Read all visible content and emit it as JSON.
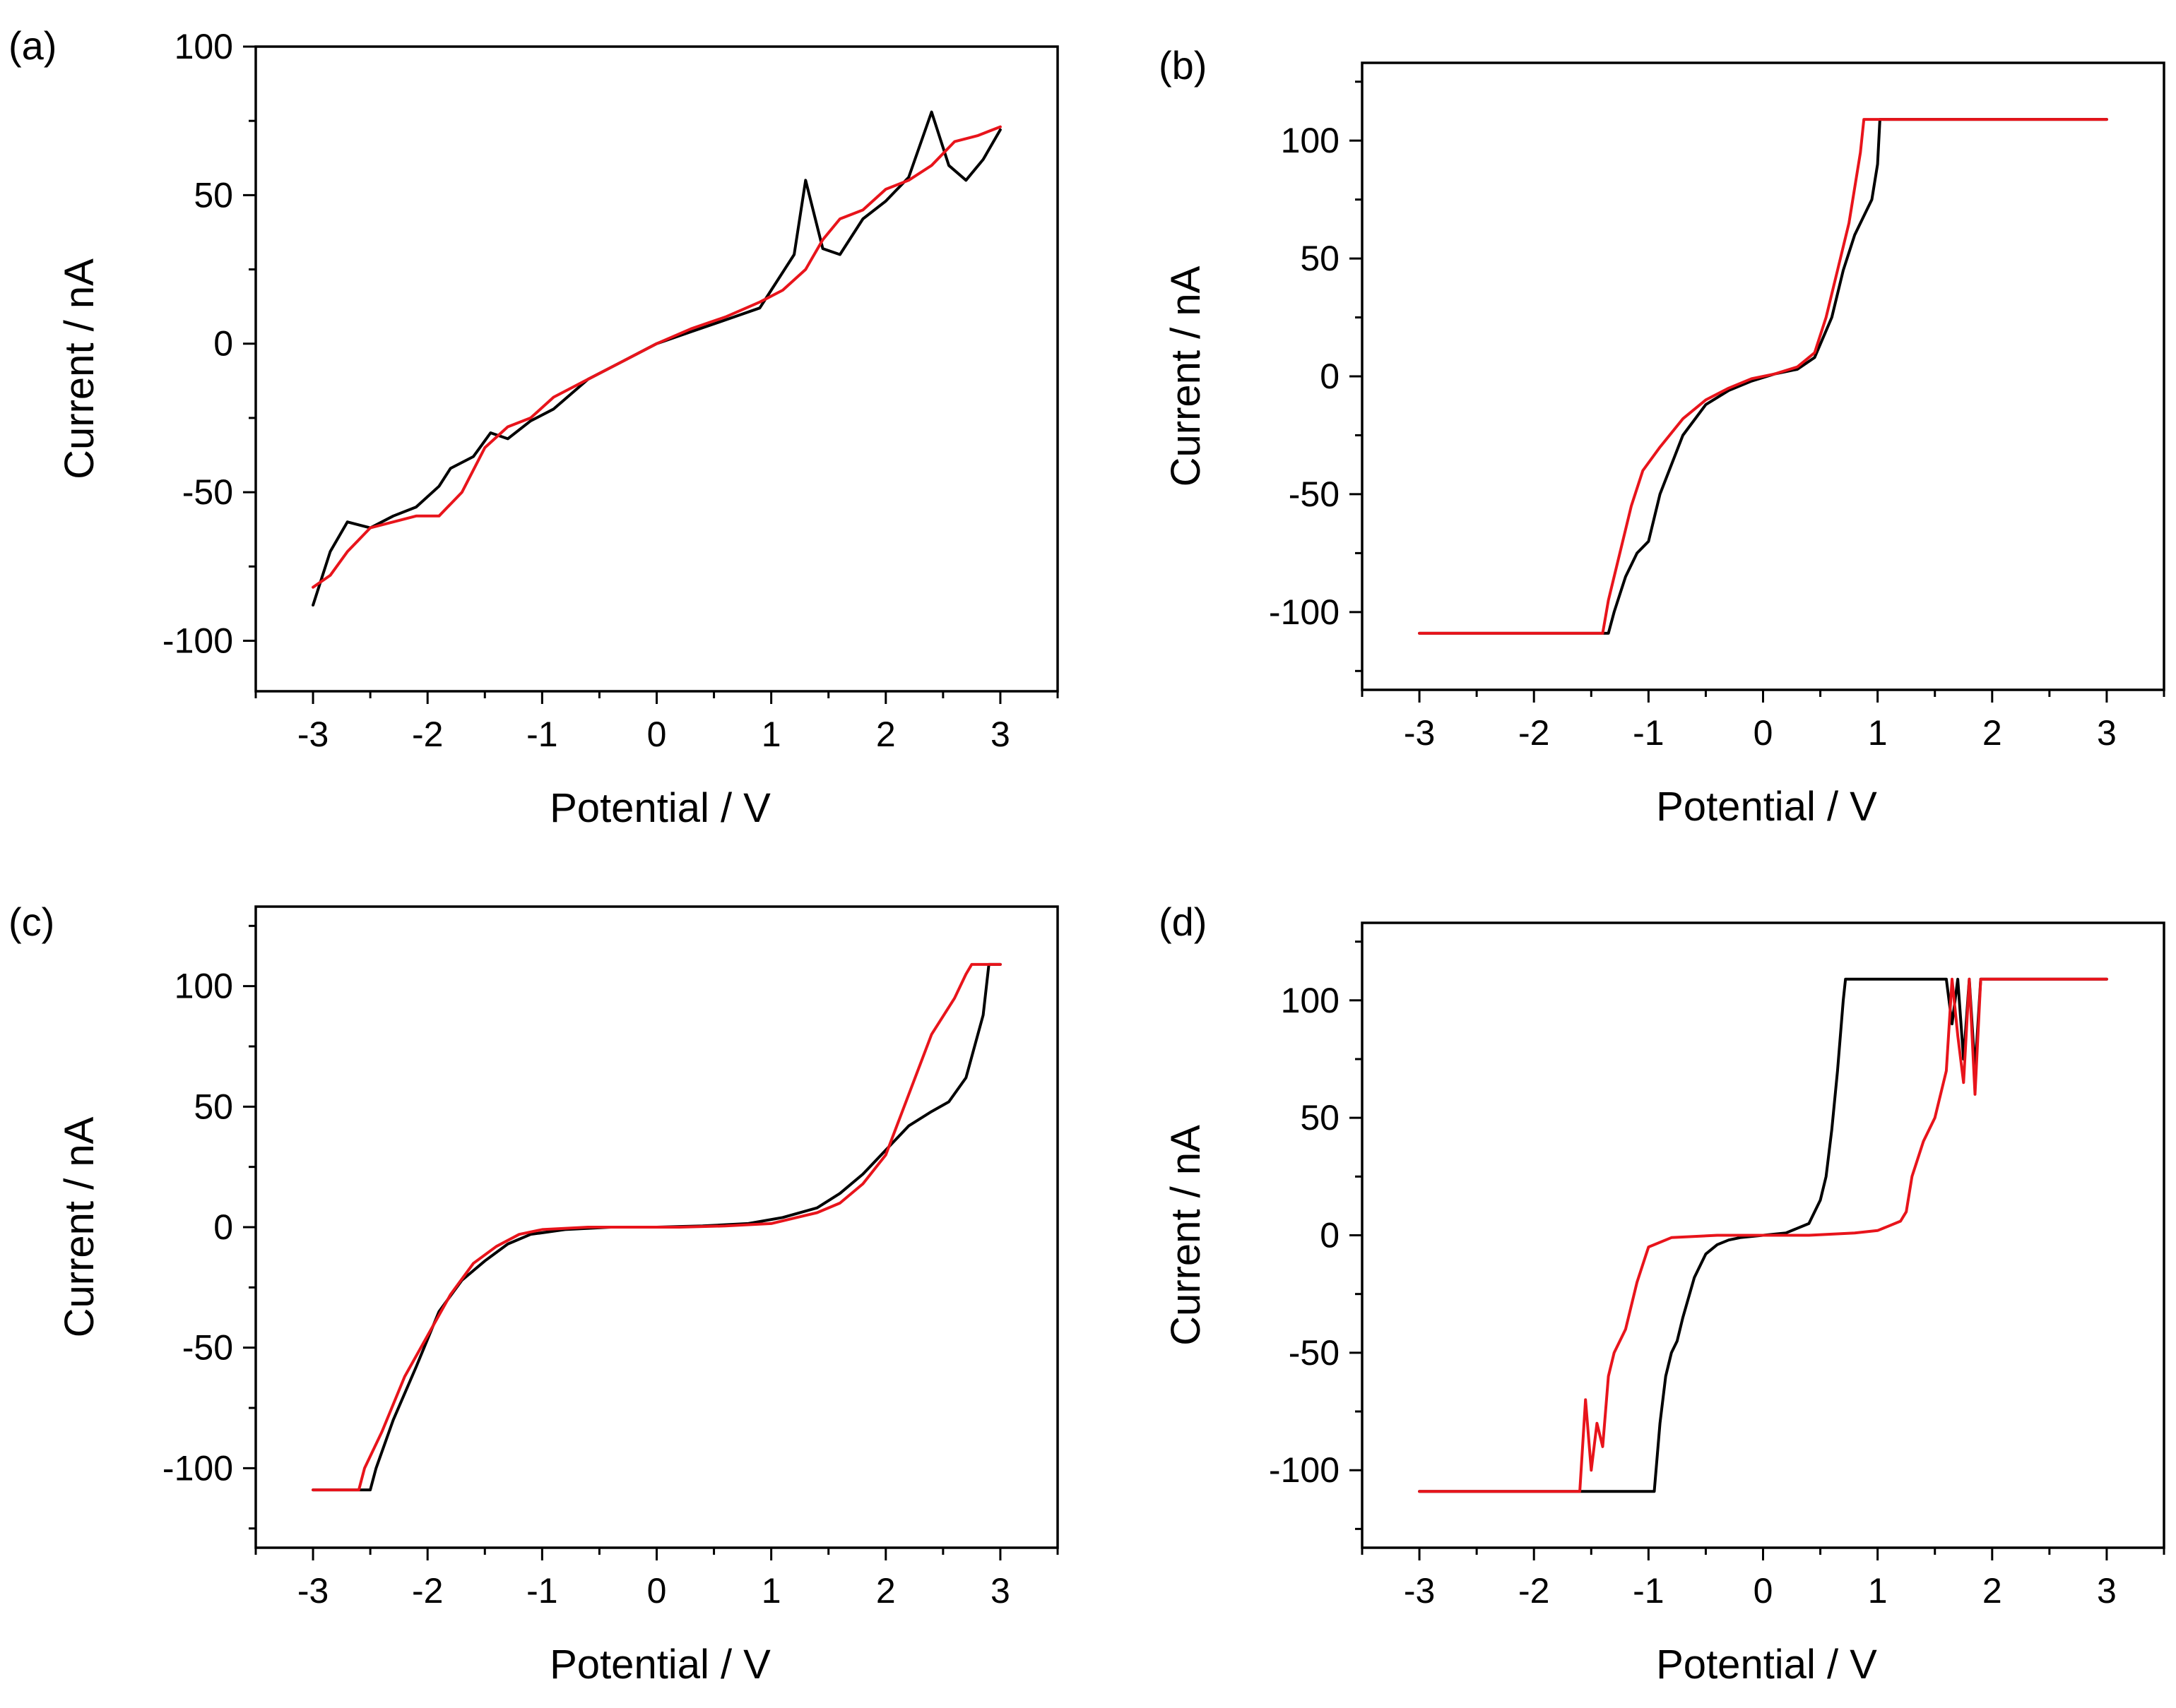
{
  "chart_data": [
    {
      "panel": "(a)",
      "type": "line",
      "xlabel": "Potential /  V",
      "ylabel": "Current / nA",
      "xlim": [
        -3.5,
        3.5
      ],
      "ylim": [
        -117,
        100
      ],
      "xticks": [
        -3,
        -2,
        -1,
        0,
        1,
        2,
        3
      ],
      "xtick_labels": [
        "-3",
        "-2",
        "-1",
        "0",
        "1",
        "2",
        "3"
      ],
      "yticks": [
        -100,
        -50,
        0,
        50,
        100
      ],
      "ytick_labels": [
        "-100",
        "-50",
        "0",
        "50",
        "100"
      ],
      "series": [
        {
          "name": "black",
          "color": "#000000",
          "x": [
            -3.0,
            -2.85,
            -2.7,
            -2.5,
            -2.3,
            -2.1,
            -1.9,
            -1.8,
            -1.6,
            -1.45,
            -1.3,
            -1.1,
            -0.9,
            -0.6,
            -0.3,
            0.0,
            0.3,
            0.6,
            0.9,
            1.0,
            1.2,
            1.3,
            1.45,
            1.6,
            1.8,
            2.0,
            2.2,
            2.4,
            2.55,
            2.7,
            2.85,
            3.0
          ],
          "y": [
            -88,
            -70,
            -60,
            -62,
            -58,
            -55,
            -48,
            -42,
            -38,
            -30,
            -32,
            -26,
            -22,
            -12,
            -6,
            0,
            4,
            8,
            12,
            18,
            30,
            55,
            32,
            30,
            42,
            48,
            56,
            78,
            60,
            55,
            62,
            72
          ]
        },
        {
          "name": "red",
          "color": "#e8141b",
          "x": [
            -3.0,
            -2.85,
            -2.7,
            -2.5,
            -2.3,
            -2.1,
            -1.9,
            -1.7,
            -1.5,
            -1.3,
            -1.1,
            -0.9,
            -0.6,
            -0.3,
            0.0,
            0.3,
            0.6,
            0.9,
            1.1,
            1.3,
            1.45,
            1.6,
            1.8,
            2.0,
            2.2,
            2.4,
            2.6,
            2.8,
            3.0
          ],
          "y": [
            -82,
            -78,
            -70,
            -62,
            -60,
            -58,
            -58,
            -50,
            -35,
            -28,
            -25,
            -18,
            -12,
            -6,
            0,
            5,
            9,
            14,
            18,
            25,
            35,
            42,
            45,
            52,
            55,
            60,
            68,
            70,
            73
          ]
        }
      ]
    },
    {
      "panel": "(b)",
      "type": "line",
      "xlabel": "Potential /  V",
      "ylabel": "Current / nA",
      "xlim": [
        -3.5,
        3.5
      ],
      "ylim": [
        -133,
        133
      ],
      "xticks": [
        -3,
        -2,
        -1,
        0,
        1,
        2,
        3
      ],
      "xtick_labels": [
        "-3",
        "-2",
        "-1",
        "0",
        "1",
        "2",
        "3"
      ],
      "yticks": [
        -100,
        -50,
        0,
        50,
        100
      ],
      "ytick_labels": [
        "-100",
        "-50",
        "0",
        "50",
        "100"
      ],
      "series": [
        {
          "name": "black",
          "color": "#000000",
          "x": [
            -3.0,
            -1.35,
            -1.3,
            -1.2,
            -1.1,
            -1.0,
            -0.9,
            -0.7,
            -0.5,
            -0.3,
            -0.1,
            0.1,
            0.3,
            0.45,
            0.6,
            0.7,
            0.8,
            0.9,
            0.95,
            1.0,
            1.02,
            3.0
          ],
          "y": [
            -109,
            -109,
            -100,
            -85,
            -75,
            -70,
            -50,
            -25,
            -12,
            -6,
            -2,
            1,
            3,
            8,
            25,
            45,
            60,
            70,
            75,
            90,
            109,
            109
          ]
        },
        {
          "name": "red",
          "color": "#e8141b",
          "x": [
            -3.0,
            -1.4,
            -1.35,
            -1.25,
            -1.15,
            -1.05,
            -0.9,
            -0.7,
            -0.5,
            -0.3,
            -0.1,
            0.1,
            0.3,
            0.45,
            0.55,
            0.65,
            0.75,
            0.85,
            0.88,
            3.0
          ],
          "y": [
            -109,
            -109,
            -95,
            -75,
            -55,
            -40,
            -30,
            -18,
            -10,
            -5,
            -1,
            1,
            4,
            10,
            25,
            45,
            65,
            95,
            109,
            109
          ]
        }
      ]
    },
    {
      "panel": "(c)",
      "type": "line",
      "xlabel": "Potential /  V",
      "ylabel": "Current / nA",
      "xlim": [
        -3.5,
        3.5
      ],
      "ylim": [
        -133,
        133
      ],
      "xticks": [
        -3,
        -2,
        -1,
        0,
        1,
        2,
        3
      ],
      "xtick_labels": [
        "-3",
        "-2",
        "-1",
        "0",
        "1",
        "2",
        "3"
      ],
      "yticks": [
        -100,
        -50,
        0,
        50,
        100
      ],
      "ytick_labels": [
        "-100",
        "-50",
        "0",
        "50",
        "100"
      ],
      "series": [
        {
          "name": "black",
          "color": "#000000",
          "x": [
            -3.0,
            -2.5,
            -2.45,
            -2.3,
            -2.1,
            -1.9,
            -1.7,
            -1.5,
            -1.3,
            -1.1,
            -0.8,
            -0.4,
            0.0,
            0.4,
            0.8,
            1.1,
            1.4,
            1.6,
            1.8,
            2.0,
            2.2,
            2.4,
            2.55,
            2.7,
            2.85,
            2.9,
            3.0
          ],
          "y": [
            -109,
            -109,
            -100,
            -80,
            -58,
            -35,
            -22,
            -14,
            -7,
            -3,
            -1,
            0,
            0,
            0.5,
            1.5,
            4,
            8,
            14,
            22,
            32,
            42,
            48,
            52,
            62,
            88,
            109,
            109
          ]
        },
        {
          "name": "red",
          "color": "#e8141b",
          "x": [
            -3.0,
            -2.6,
            -2.55,
            -2.4,
            -2.2,
            -2.0,
            -1.8,
            -1.6,
            -1.4,
            -1.2,
            -1.0,
            -0.6,
            -0.2,
            0.2,
            0.6,
            1.0,
            1.4,
            1.6,
            1.8,
            2.0,
            2.2,
            2.4,
            2.6,
            2.7,
            2.75,
            3.0
          ],
          "y": [
            -109,
            -109,
            -100,
            -85,
            -62,
            -45,
            -28,
            -15,
            -8,
            -3,
            -1,
            0,
            0,
            0,
            0.5,
            1.5,
            6,
            10,
            18,
            30,
            55,
            80,
            95,
            105,
            109,
            109
          ]
        }
      ]
    },
    {
      "panel": "(d)",
      "type": "line",
      "xlabel": "Potential /  V",
      "ylabel": "Current / nA",
      "xlim": [
        -3.5,
        3.5
      ],
      "ylim": [
        -133,
        133
      ],
      "xticks": [
        -3,
        -2,
        -1,
        0,
        1,
        2,
        3
      ],
      "xtick_labels": [
        "-3",
        "-2",
        "-1",
        "0",
        "1",
        "2",
        "3"
      ],
      "yticks": [
        -100,
        -50,
        0,
        50,
        100
      ],
      "ytick_labels": [
        "-100",
        "-50",
        "0",
        "50",
        "100"
      ],
      "series": [
        {
          "name": "black",
          "color": "#000000",
          "x": [
            -3.0,
            -0.95,
            -0.9,
            -0.85,
            -0.8,
            -0.75,
            -0.7,
            -0.6,
            -0.5,
            -0.4,
            -0.3,
            -0.2,
            0.0,
            0.2,
            0.4,
            0.5,
            0.55,
            0.6,
            0.65,
            0.7,
            0.72,
            1.6,
            1.65,
            1.7,
            1.75,
            1.8,
            1.85,
            1.9,
            3.0
          ],
          "y": [
            -109,
            -109,
            -80,
            -60,
            -50,
            -45,
            -35,
            -18,
            -8,
            -4,
            -2,
            -1,
            0,
            1,
            5,
            15,
            25,
            45,
            70,
            100,
            109,
            109,
            90,
            109,
            75,
            109,
            70,
            109,
            109
          ]
        },
        {
          "name": "red",
          "color": "#e8141b",
          "x": [
            -3.0,
            -1.6,
            -1.55,
            -1.5,
            -1.45,
            -1.4,
            -1.35,
            -1.3,
            -1.2,
            -1.1,
            -1.0,
            -0.8,
            -0.4,
            0.0,
            0.4,
            0.8,
            1.0,
            1.1,
            1.2,
            1.25,
            1.3,
            1.4,
            1.5,
            1.6,
            1.65,
            1.7,
            1.75,
            1.8,
            1.85,
            1.9,
            3.0
          ],
          "y": [
            -109,
            -109,
            -70,
            -100,
            -80,
            -90,
            -60,
            -50,
            -40,
            -20,
            -5,
            -1,
            0,
            0,
            0,
            1,
            2,
            4,
            6,
            10,
            25,
            40,
            50,
            70,
            109,
            85,
            65,
            109,
            60,
            109,
            109
          ]
        }
      ]
    }
  ]
}
